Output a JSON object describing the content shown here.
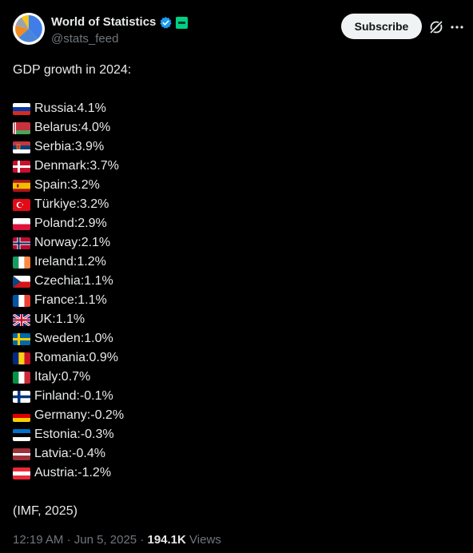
{
  "account": {
    "display_name": "World of Statistics",
    "handle": "@stats_feed",
    "verified_icon": "verified-badge-icon",
    "affiliate_icon": "affiliate-badge-icon"
  },
  "actions": {
    "subscribe_label": "Subscribe"
  },
  "post": {
    "title": "GDP growth in 2024:",
    "items": [
      {
        "flag": "russia",
        "country": "Russia",
        "value": "4.1%"
      },
      {
        "flag": "belarus",
        "country": "Belarus",
        "value": "4.0%"
      },
      {
        "flag": "serbia",
        "country": "Serbia",
        "value": "3.9%"
      },
      {
        "flag": "denmark",
        "country": "Denmark",
        "value": "3.7%"
      },
      {
        "flag": "spain",
        "country": "Spain",
        "value": "3.2%"
      },
      {
        "flag": "turkiye",
        "country": "Türkiye",
        "value": "3.2%"
      },
      {
        "flag": "poland",
        "country": "Poland",
        "value": "2.9%"
      },
      {
        "flag": "norway",
        "country": "Norway",
        "value": "2.1%"
      },
      {
        "flag": "ireland",
        "country": "Ireland",
        "value": "1.2%"
      },
      {
        "flag": "czechia",
        "country": "Czechia",
        "value": "1.1%"
      },
      {
        "flag": "france",
        "country": "France",
        "value": "1.1%"
      },
      {
        "flag": "uk",
        "country": "UK",
        "value": "1.1%"
      },
      {
        "flag": "sweden",
        "country": "Sweden",
        "value": "1.0%"
      },
      {
        "flag": "romania",
        "country": "Romania",
        "value": "0.9%"
      },
      {
        "flag": "italy",
        "country": "Italy",
        "value": "0.7%"
      },
      {
        "flag": "finland",
        "country": "Finland",
        "value": "-0.1%"
      },
      {
        "flag": "germany",
        "country": "Germany",
        "value": "-0.2%"
      },
      {
        "flag": "estonia",
        "country": "Estonia",
        "value": "-0.3%"
      },
      {
        "flag": "latvia",
        "country": "Latvia",
        "value": "-0.4%"
      },
      {
        "flag": "austria",
        "country": "Austria",
        "value": "-1.2%"
      }
    ],
    "source": "(IMF, 2025)"
  },
  "meta": {
    "time": "12:19 AM",
    "separator": "·",
    "date": "Jun 5, 2025",
    "views_count": "194.1K",
    "views_label": "Views"
  },
  "colors": {
    "background": "#000000",
    "text": "#e7e9ea",
    "muted": "#71767b",
    "verified": "#1d9bf0",
    "affiliate": "#00d084"
  }
}
